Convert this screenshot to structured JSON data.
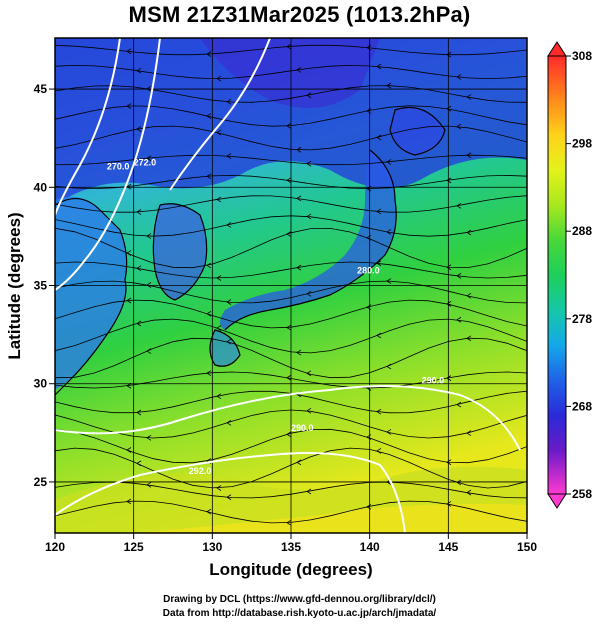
{
  "title": "MSM 21Z31Mar2025 (1013.2hPa)",
  "xlabel": "Longitude (degrees)",
  "ylabel": "Latitude  (degrees)",
  "credit_line1": "Drawing by DCL (https://www.gfd-dennou.org/library/dcl/)",
  "credit_line2": "Data from http://database.rish.kyoto-u.ac.jp/arch/jmadata/",
  "map": {
    "lon_range": [
      120,
      150
    ],
    "lat_range": [
      22.4,
      47.6
    ],
    "lon_ticks": [
      120,
      125,
      130,
      135,
      140,
      145,
      150
    ],
    "lat_ticks": [
      25,
      30,
      35,
      40,
      45
    ],
    "grid": true,
    "field": "temperature (K) at 1013.2hPa with streamlines",
    "contour_labels": [
      {
        "text": "270.0",
        "lon": 123.3,
        "lat": 40.9
      },
      {
        "text": "272.0",
        "lon": 125.0,
        "lat": 41.1
      },
      {
        "text": "280.0",
        "lon": 139.2,
        "lat": 35.6
      },
      {
        "text": "290.0",
        "lon": 143.3,
        "lat": 30.0
      },
      {
        "text": "290.0",
        "lon": 135.0,
        "lat": 27.6
      },
      {
        "text": "292.0",
        "lon": 128.5,
        "lat": 25.4
      }
    ]
  },
  "colorbar": {
    "min": 258,
    "max": 308,
    "labels": [
      "308",
      "298",
      "288",
      "278",
      "268",
      "258"
    ],
    "colors": [
      "#ff2a2a",
      "#ff8a1a",
      "#ffd21a",
      "#e4f21a",
      "#a8e81e",
      "#48d838",
      "#1ecf5a",
      "#14c8a8",
      "#14a8e8",
      "#1f63e8",
      "#2a2ad8",
      "#6a1ac8",
      "#b81ad8",
      "#ff3ad0"
    ]
  }
}
